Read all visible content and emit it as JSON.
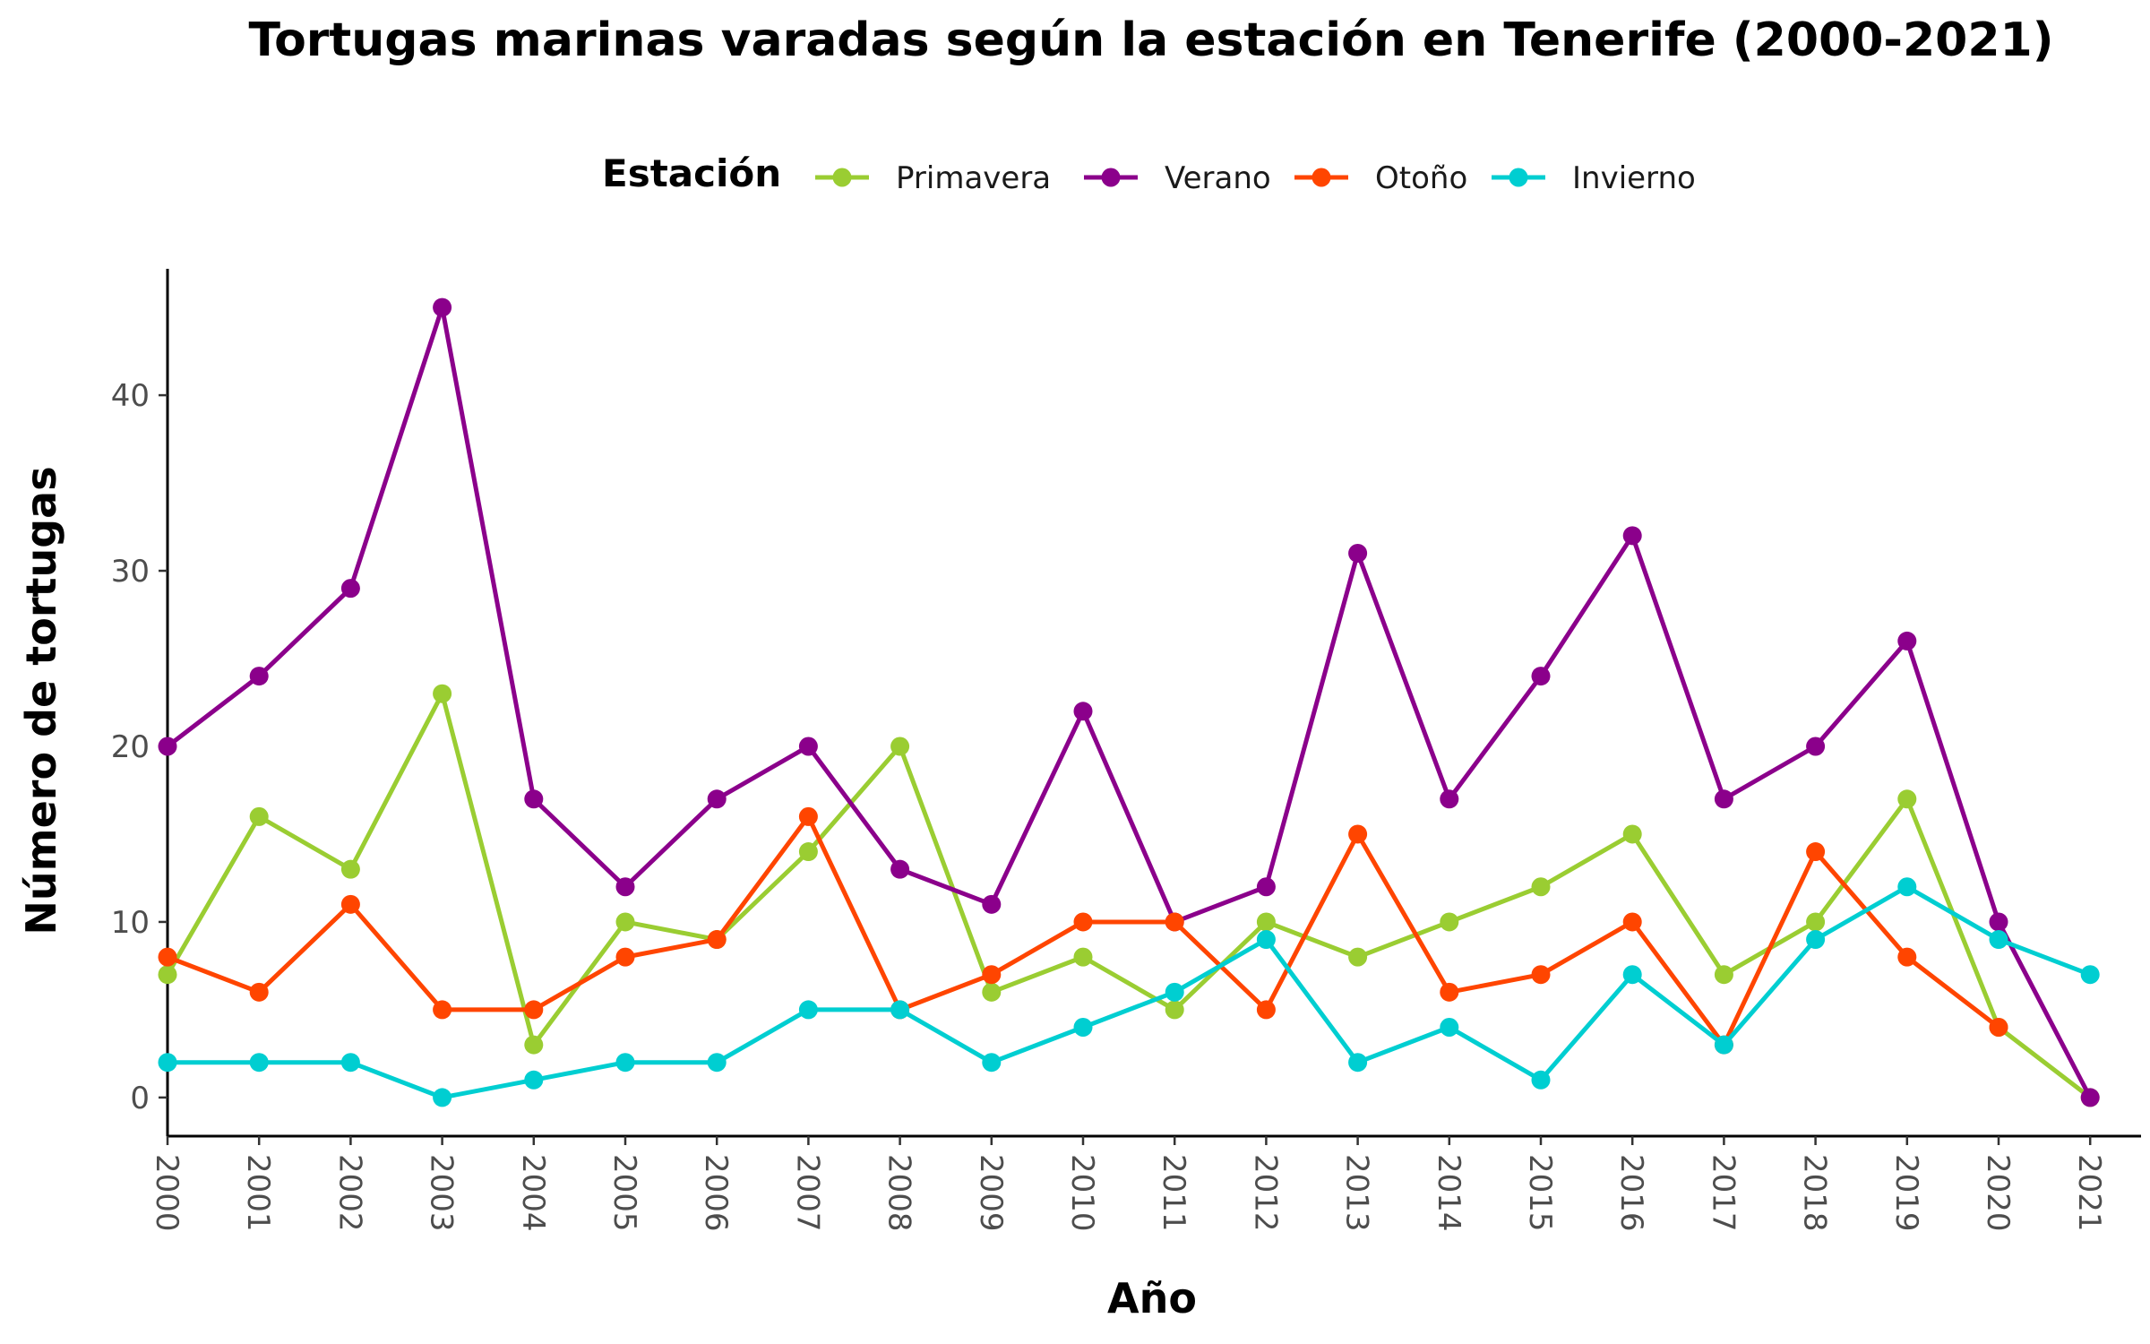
{
  "chart_data": {
    "type": "line",
    "title": "Tortugas marinas varadas según la estación en Tenerife (2000-2021)",
    "xlabel": "Año",
    "ylabel": "Número de tortugas",
    "legend_title": "Estación",
    "legend_position": "top",
    "grid": false,
    "x": [
      "2000",
      "2001",
      "2002",
      "2003",
      "2004",
      "2005",
      "2006",
      "2007",
      "2008",
      "2009",
      "2010",
      "2011",
      "2012",
      "2013",
      "2014",
      "2015",
      "2016",
      "2017",
      "2018",
      "2019",
      "2020",
      "2021"
    ],
    "yticks": [
      0,
      10,
      20,
      30,
      40
    ],
    "ylim": [
      -2.2,
      47.2
    ],
    "series": [
      {
        "name": "Primavera",
        "color": "#9ACD32",
        "values": [
          7,
          16,
          13,
          23,
          3,
          10,
          9,
          14,
          20,
          6,
          8,
          5,
          10,
          8,
          10,
          12,
          15,
          7,
          10,
          17,
          4,
          0
        ]
      },
      {
        "name": "Verano",
        "color": "#8B008B",
        "values": [
          20,
          24,
          29,
          45,
          17,
          12,
          17,
          20,
          13,
          11,
          22,
          10,
          12,
          31,
          17,
          24,
          32,
          17,
          20,
          26,
          10,
          0
        ]
      },
      {
        "name": "Otoño",
        "color": "#FF4500",
        "values": [
          8,
          6,
          11,
          5,
          5,
          8,
          9,
          16,
          5,
          7,
          10,
          10,
          5,
          15,
          6,
          7,
          10,
          3,
          14,
          8,
          4,
          null
        ]
      },
      {
        "name": "Invierno",
        "color": "#00CED1",
        "values": [
          2,
          2,
          2,
          0,
          1,
          2,
          2,
          5,
          5,
          2,
          4,
          6,
          9,
          2,
          4,
          1,
          7,
          3,
          9,
          12,
          9,
          7
        ]
      }
    ]
  }
}
